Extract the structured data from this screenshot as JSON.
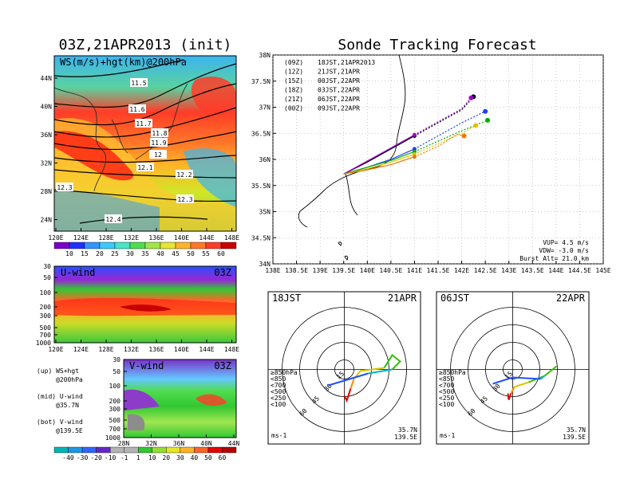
{
  "left_title": "03Z,21APR2013 (init)",
  "right_title": "Sonde Tracking Forecast",
  "ws_map": {
    "label": "WS(m/s)+hgt(km)@200hPa",
    "lat_labels": [
      "44N",
      "40N",
      "36N",
      "32N",
      "28N",
      "24N"
    ],
    "lon_labels": [
      "120E",
      "124E",
      "128E",
      "132E",
      "136E",
      "140E",
      "144E",
      "148E"
    ],
    "contour_labels": [
      "11.5",
      "11.6",
      "11.7",
      "11.8",
      "11.9",
      "12",
      "12.1",
      "12.2",
      "12.3",
      "12.3",
      "12.4"
    ],
    "colorbar_labels": [
      "10",
      "15",
      "20",
      "25",
      "30",
      "35",
      "40",
      "45",
      "50",
      "55",
      "60"
    ]
  },
  "u_wind": {
    "label": "U-wind",
    "time": "03Z",
    "y_labels": [
      "30",
      "50",
      "100",
      "200",
      "300",
      "500",
      "700",
      "1000"
    ],
    "x_labels": [
      "120E",
      "124E",
      "128E",
      "132E",
      "136E",
      "140E",
      "144E",
      "148E"
    ]
  },
  "v_wind": {
    "label": "V-wind",
    "time": "03Z",
    "y_labels": [
      "30",
      "50",
      "100",
      "200",
      "300",
      "500",
      "700",
      "1000"
    ],
    "x_labels": [
      "28N",
      "32N",
      "36N",
      "40N",
      "44N"
    ]
  },
  "legend_notes": [
    {
      "head": "(up) WS+hgt",
      "sub": "@200hPa"
    },
    {
      "head": "(mid) U-wind",
      "sub": "@35.7N"
    },
    {
      "head": "(bot) V-wind",
      "sub": "@139.5E"
    }
  ],
  "bottom_colorbar_labels": [
    "-40",
    "-30",
    "-20",
    "-10",
    "-1",
    "1",
    "10",
    "20",
    "30",
    "40",
    "50",
    "60"
  ],
  "tracking": {
    "lat_labels": [
      "38N",
      "37.5N",
      "37N",
      "36.5N",
      "36N",
      "35.5N",
      "35N",
      "34.5N",
      "34N"
    ],
    "lon_labels": [
      "138E",
      "138.5E",
      "139E",
      "139.5E",
      "140E",
      "140.5E",
      "141E",
      "141.5E",
      "142E",
      "142.5E",
      "143E",
      "143.5E",
      "144E",
      "144.5E",
      "145E"
    ],
    "legend": [
      {
        "a": "(09Z)",
        "b": "18JST,21APR2013",
        "color": "#000000"
      },
      {
        "a": "(12Z)",
        "b": "21JST,21APR",
        "color": "#a000c8"
      },
      {
        "a": "(15Z)",
        "b": "00JST,22APR",
        "color": "#1e3cff"
      },
      {
        "a": "(18Z)",
        "b": "03JST,22APR",
        "color": "#00aa00"
      },
      {
        "a": "(21Z)",
        "b": "06JST,22APR",
        "color": "#e0c000"
      },
      {
        "a": "(00Z)",
        "b": "09JST,22APR",
        "color": "#f07800"
      }
    ],
    "vup": "VUP= 4.5 m/s",
    "vdw": "VDW= -3.0 m/s",
    "burst": "Burst Alt= 21.0 km"
  },
  "chart_data": {
    "type": "line",
    "title": "Sonde Tracking Forecast",
    "xlim": [
      138,
      145
    ],
    "ylim": [
      34,
      38
    ],
    "series": [
      {
        "name": "18JST,21APR2013",
        "x": [
          139.5,
          140.0,
          140.5,
          141.0,
          141.5,
          142.0,
          142.25
        ],
        "y": [
          35.72,
          35.95,
          36.2,
          36.45,
          36.7,
          36.95,
          37.2
        ]
      },
      {
        "name": "21JST,21APR",
        "x": [
          139.5,
          140.0,
          140.5,
          141.0,
          141.5,
          142.0,
          142.2
        ],
        "y": [
          35.72,
          35.97,
          36.22,
          36.47,
          36.72,
          36.97,
          37.18
        ]
      },
      {
        "name": "00JST,22APR",
        "x": [
          139.5,
          140.0,
          140.5,
          141.0,
          141.5,
          142.0,
          142.5
        ],
        "y": [
          35.72,
          35.85,
          36.0,
          36.2,
          36.45,
          36.7,
          36.92
        ]
      },
      {
        "name": "03JST,22APR",
        "x": [
          139.5,
          140.0,
          140.5,
          141.0,
          141.5,
          142.0,
          142.55
        ],
        "y": [
          35.72,
          35.85,
          35.98,
          36.15,
          36.35,
          36.55,
          36.75
        ]
      },
      {
        "name": "06JST,22APR",
        "x": [
          139.5,
          140.0,
          140.5,
          141.0,
          141.5,
          142.0,
          142.3
        ],
        "y": [
          35.72,
          35.82,
          35.95,
          36.1,
          36.3,
          36.5,
          36.65
        ]
      },
      {
        "name": "09JST,22APR",
        "x": [
          139.5,
          140.0,
          140.5,
          141.0,
          141.5,
          141.9,
          142.05
        ],
        "y": [
          35.72,
          35.8,
          35.9,
          36.05,
          36.25,
          36.48,
          36.45
        ]
      }
    ]
  },
  "hodo_left": {
    "time": "18JST",
    "date": "21APR",
    "loc1": "35.7N",
    "loc2": "139.5E",
    "unit": "ms-1",
    "rings": [
      "15",
      "30",
      "45",
      "60"
    ]
  },
  "hodo_right": {
    "time": "06JST",
    "date": "22APR",
    "loc1": "35.7N",
    "loc2": "139.5E",
    "unit": "ms-1",
    "rings": [
      "15",
      "30",
      "45",
      "60"
    ]
  },
  "hodo_legend": [
    {
      "text": "≥850hPa",
      "color": "#e00000"
    },
    {
      "text": "<850",
      "color": "#ff8c00"
    },
    {
      "text": "<700",
      "color": "#d8c800"
    },
    {
      "text": "<500",
      "color": "#30c000"
    },
    {
      "text": "<250",
      "color": "#00b4c8"
    },
    {
      "text": "<100",
      "color": "#2050ff"
    }
  ]
}
